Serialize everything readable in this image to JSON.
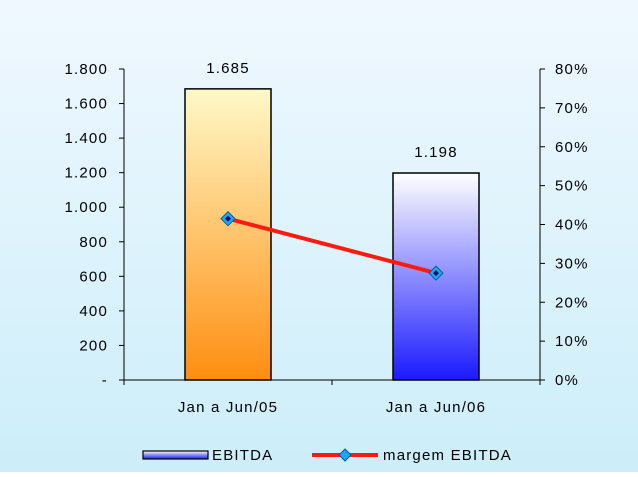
{
  "chart_data": {
    "type": "bar",
    "categories": [
      "Jan a Jun/05",
      "Jan a Jun/06"
    ],
    "series": [
      {
        "name": "EBITDA",
        "type": "bar",
        "axis": "left",
        "values": [
          1685,
          1198
        ],
        "value_labels": [
          "1.685",
          "1.198"
        ]
      },
      {
        "name": "margem EBITDA",
        "type": "line",
        "axis": "right",
        "values": [
          41.5,
          27.5
        ],
        "unit": "%"
      }
    ],
    "y_left": {
      "range": [
        0,
        1800
      ],
      "ticks": [
        0,
        200,
        400,
        600,
        800,
        1000,
        1200,
        1400,
        1600,
        1800
      ],
      "tick_labels": [
        "-",
        "200",
        "400",
        "600",
        "800",
        "1.000",
        "1.200",
        "1.400",
        "1.600",
        "1.800"
      ]
    },
    "y_right": {
      "range": [
        0,
        80
      ],
      "ticks": [
        0,
        10,
        20,
        30,
        40,
        50,
        60,
        70,
        80
      ],
      "tick_labels": [
        "0%",
        "10%",
        "20%",
        "30%",
        "40%",
        "50%",
        "60%",
        "70%",
        "80%"
      ]
    },
    "grid": false,
    "legend": "bottom",
    "colors": {
      "background_top": "#f0f8ff",
      "background_bottom": "#cceef9",
      "bar1_top": "#fff9c8",
      "bar1_bottom": "#ff8e10",
      "bar2_top": "#ffffff",
      "bar2_bottom": "#1a1aff",
      "line": "#ff1a0f",
      "marker": "#1aa8f0",
      "marker_center": "#0a0a7a"
    }
  }
}
